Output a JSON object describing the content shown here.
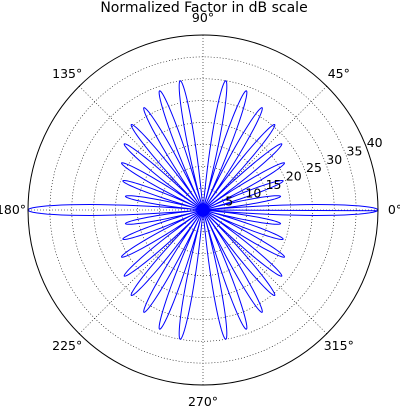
{
  "chart_data": {
    "type": "line",
    "projection": "polar",
    "title": "Normalized Factor in dB scale",
    "grid": true,
    "angle_unit": "degrees",
    "angle_ticks": [
      "0°",
      "45°",
      "90°",
      "135°",
      "180°",
      "225°",
      "270°",
      "315°"
    ],
    "radial_ticks": [
      "5",
      "10",
      "15",
      "20",
      "25",
      "30",
      "35",
      "40"
    ],
    "rlim": [
      0,
      40
    ],
    "series": [
      {
        "color": "#0000ff",
        "x_theta_deg": [
          0,
          5,
          10,
          15,
          20,
          25,
          30,
          35,
          40,
          45,
          50,
          55,
          60,
          65,
          70,
          75,
          80,
          85,
          90,
          95,
          100,
          105,
          110,
          115,
          120,
          125,
          130,
          135,
          140,
          145,
          150,
          155,
          160,
          165,
          170,
          175,
          180,
          185,
          190,
          195,
          200,
          205,
          210,
          215,
          220,
          225,
          230,
          235,
          240,
          245,
          250,
          255,
          260,
          265,
          270,
          275,
          280,
          285,
          290,
          295,
          300,
          305,
          310,
          315,
          320,
          325,
          330,
          335,
          340,
          345,
          350,
          355
        ],
        "y_r": [
          40.0,
          0.0,
          18.0,
          0.0,
          19.5,
          0.0,
          21.5,
          0.0,
          23.5,
          0.0,
          25.5,
          0.0,
          27.0,
          0.0,
          29.0,
          0.0,
          30.0,
          0.0,
          0.0,
          0.0,
          30.0,
          0.0,
          29.0,
          0.0,
          27.0,
          0.0,
          25.5,
          0.0,
          23.5,
          0.0,
          21.5,
          0.0,
          19.5,
          0.0,
          18.0,
          0.0,
          40.0,
          0.0,
          18.0,
          0.0,
          19.5,
          0.0,
          21.5,
          0.0,
          23.5,
          0.0,
          25.5,
          0.0,
          27.0,
          0.0,
          29.0,
          0.0,
          30.0,
          0.0,
          0.0,
          0.0,
          30.0,
          0.0,
          29.0,
          0.0,
          27.0,
          0.0,
          25.5,
          0.0,
          23.5,
          0.0,
          21.5,
          0.0,
          19.5,
          0.0,
          18.0,
          0.0
        ]
      }
    ]
  }
}
